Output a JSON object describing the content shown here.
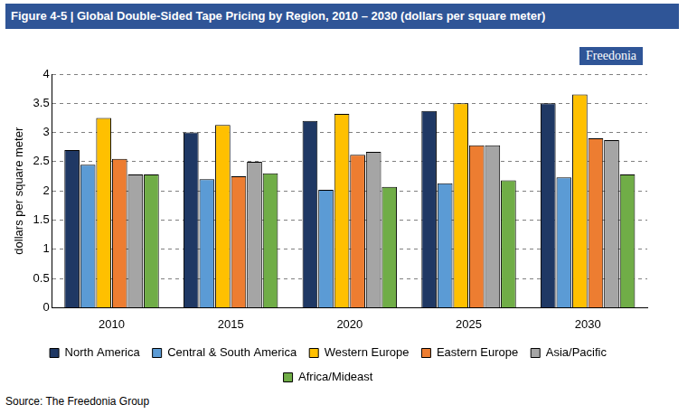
{
  "chart_data": {
    "type": "bar",
    "title": "Figure 4-5 | Global Double-Sided Tape Pricing by Region, 2010 – 2030 (dollars per square meter)",
    "y_label": "dollars per square meter",
    "source": "Source: The Freedonia Group",
    "logo": "Freedonia",
    "categories": [
      "2010",
      "2015",
      "2020",
      "2025",
      "2030"
    ],
    "series": [
      {
        "name": "North America",
        "color": "#1f3864",
        "values": [
          2.7,
          3.0,
          3.2,
          3.37,
          3.5
        ]
      },
      {
        "name": "Central & South America",
        "color": "#5b9bd5",
        "values": [
          2.45,
          2.2,
          2.02,
          2.13,
          2.23
        ]
      },
      {
        "name": "Western Europe",
        "color": "#ffc000",
        "values": [
          3.25,
          3.13,
          3.32,
          3.5,
          3.65
        ]
      },
      {
        "name": "Eastern Europe",
        "color": "#ed7d31",
        "values": [
          2.55,
          2.25,
          2.62,
          2.78,
          2.9
        ]
      },
      {
        "name": "Asia/Pacific",
        "color": "#a5a5a5",
        "values": [
          2.28,
          2.5,
          2.67,
          2.78,
          2.87
        ]
      },
      {
        "name": "Africa/Mideast",
        "color": "#70ad47",
        "values": [
          2.28,
          2.3,
          2.07,
          2.18,
          2.28
        ]
      }
    ],
    "ylim": [
      0,
      4
    ],
    "yticks": [
      0,
      0.5,
      1,
      1.5,
      2,
      2.5,
      3,
      3.5,
      4
    ],
    "grid": true,
    "legend": "bottom"
  }
}
